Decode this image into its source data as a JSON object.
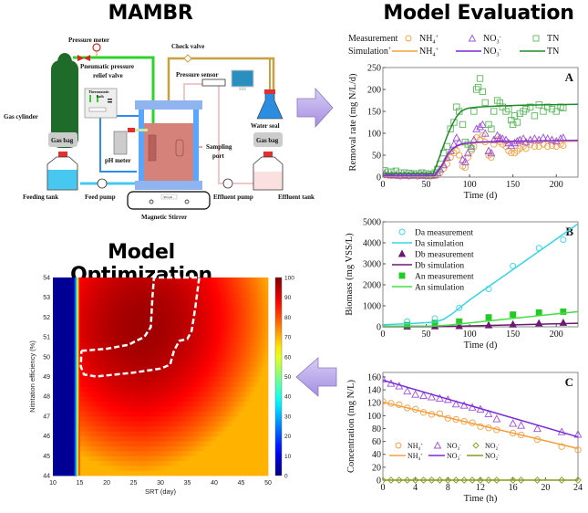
{
  "panels": {
    "mambr_title": "MAMBR",
    "evaluation_title": "Model Evaluation",
    "optimization_title": "Model Optimization"
  },
  "diagram": {
    "labels": {
      "pressure_meter": "Pressure meter",
      "relief_valve_1": "Pneumatic pressure",
      "relief_valve_2": "relief valve",
      "check_valve": "Check valve",
      "pressure_sensor": "Pressure sensor",
      "thermostatic_bath_1": "Thermostatic",
      "thermostatic_bath_2": "bath",
      "gas_cylinder": "Gas cylinder",
      "water_seal": "Water seal",
      "gas_bag_left": "Gas bag",
      "gas_bag_right": "Gas bag",
      "ph_meter": "pH meter",
      "sampling_port_1": "Sampling",
      "sampling_port_2": "port",
      "feeding_tank": "Feeding tank",
      "feed_pump": "Feed pump",
      "effluent_pump": "Effluent pump",
      "effluent_tank": "Effluent tank",
      "magnetic_stirrer": "Magnetic Stirrer",
      "stirrer_display": "300 rpm"
    }
  },
  "legend_top": {
    "measurement_label": "Measurement",
    "simulation_label": "Simulation",
    "simulation_sup": "+",
    "items": [
      {
        "base": "NH",
        "sub": "4",
        "sup": "+"
      },
      {
        "base": "NO",
        "sub": "3",
        "sup": "-"
      },
      {
        "base": "TN",
        "sub": "",
        "sup": ""
      }
    ]
  },
  "colors": {
    "nh4": "#f5a040",
    "no3": "#9b4fe0",
    "no3_line": "#7a28d8",
    "tn": "#5cb85c",
    "tn_line": "#1f8a2a",
    "da": "#33d6e6",
    "db": "#6b1a72",
    "an_meas": "#22cc22",
    "an_line": "#44dd44",
    "no2": "#8a9a20",
    "arrow": "#b9a6ec"
  },
  "chart_data": [
    {
      "id": "A",
      "type": "scatter",
      "panel_label": "A",
      "xlabel": "Time (d)",
      "ylabel": "Removal rate (mg N/L/d)",
      "xlim": [
        0,
        225
      ],
      "ylim": [
        0,
        250
      ],
      "xticks": [
        0,
        50,
        100,
        150,
        200
      ],
      "yticks": [
        0,
        50,
        100,
        150,
        200,
        250
      ],
      "series": [
        {
          "name": "NH4+ measurement",
          "kind": "circle",
          "color_key": "nh4",
          "x": [
            2,
            6,
            10,
            15,
            20,
            25,
            30,
            35,
            40,
            45,
            50,
            55,
            60,
            63,
            66,
            70,
            74,
            78,
            82,
            85,
            88,
            92,
            95,
            98,
            102,
            105,
            108,
            112,
            115,
            118,
            122,
            125,
            128,
            132,
            135,
            138,
            142,
            145,
            148,
            152,
            155,
            158,
            162,
            165,
            170,
            175,
            180,
            185,
            190,
            195,
            200,
            205,
            208
          ],
          "y": [
            5,
            4,
            3,
            3,
            2,
            3,
            2,
            3,
            2,
            3,
            2,
            2,
            3,
            6,
            10,
            20,
            30,
            45,
            55,
            60,
            50,
            25,
            22,
            45,
            60,
            70,
            90,
            85,
            95,
            80,
            50,
            45,
            75,
            85,
            80,
            75,
            70,
            60,
            55,
            55,
            60,
            65,
            70,
            65,
            75,
            70,
            70,
            75,
            70,
            72,
            70,
            75,
            72
          ]
        },
        {
          "name": "NO3- measurement",
          "kind": "triangle",
          "color_key": "no3",
          "x": [
            2,
            6,
            10,
            15,
            20,
            25,
            30,
            35,
            40,
            45,
            50,
            55,
            60,
            63,
            66,
            70,
            74,
            78,
            82,
            85,
            88,
            92,
            95,
            98,
            102,
            105,
            108,
            112,
            115,
            118,
            122,
            125,
            128,
            132,
            135,
            138,
            142,
            145,
            148,
            152,
            155,
            158,
            162,
            165,
            170,
            175,
            180,
            185,
            190,
            195,
            200,
            205,
            208
          ],
          "y": [
            8,
            6,
            5,
            5,
            4,
            5,
            4,
            5,
            4,
            5,
            4,
            4,
            5,
            10,
            18,
            28,
            45,
            60,
            75,
            90,
            80,
            40,
            35,
            55,
            70,
            85,
            110,
            115,
            120,
            100,
            60,
            55,
            85,
            95,
            90,
            88,
            85,
            78,
            72,
            78,
            82,
            85,
            88,
            80,
            85,
            88,
            85,
            90,
            88,
            85,
            82,
            88,
            90
          ]
        },
        {
          "name": "TN measurement",
          "kind": "square",
          "color_key": "tn",
          "x": [
            2,
            6,
            10,
            15,
            20,
            25,
            30,
            35,
            40,
            45,
            50,
            55,
            60,
            63,
            66,
            70,
            74,
            78,
            82,
            85,
            88,
            92,
            95,
            98,
            102,
            105,
            108,
            110,
            112,
            115,
            118,
            122,
            125,
            128,
            132,
            135,
            138,
            142,
            145,
            148,
            150,
            152,
            155,
            158,
            162,
            165,
            170,
            175,
            180,
            185,
            190,
            195,
            200,
            205,
            208
          ],
          "y": [
            15,
            12,
            12,
            14,
            10,
            10,
            9,
            8,
            8,
            10,
            8,
            7,
            10,
            18,
            30,
            55,
            70,
            110,
            125,
            160,
            150,
            120,
            80,
            75,
            65,
            150,
            200,
            205,
            225,
            195,
            170,
            120,
            110,
            150,
            175,
            170,
            160,
            150,
            155,
            130,
            120,
            140,
            125,
            145,
            150,
            155,
            160,
            140,
            165,
            150,
            160,
            155,
            150,
            160,
            158
          ]
        },
        {
          "name": "NH4+ simulation",
          "kind": "line",
          "color_key": "nh4",
          "x": [
            0,
            60,
            65,
            70,
            75,
            80,
            85,
            90,
            95,
            100,
            110,
            130,
            160,
            225
          ],
          "y": [
            3,
            3,
            15,
            30,
            48,
            62,
            70,
            74,
            76,
            78,
            79,
            80,
            81,
            82
          ]
        },
        {
          "name": "NO3- simulation",
          "kind": "line",
          "color_key": "no3_line",
          "x": [
            0,
            60,
            65,
            70,
            75,
            80,
            85,
            90,
            95,
            100,
            110,
            130,
            160,
            225
          ],
          "y": [
            4,
            4,
            17,
            33,
            52,
            64,
            71,
            75,
            77,
            78,
            80,
            81,
            82,
            84
          ]
        },
        {
          "name": "TN simulation",
          "kind": "line",
          "color_key": "tn_line",
          "x": [
            0,
            58,
            62,
            66,
            70,
            75,
            80,
            85,
            90,
            95,
            100,
            110,
            130,
            160,
            225
          ],
          "y": [
            8,
            8,
            28,
            50,
            72,
            98,
            120,
            138,
            150,
            155,
            158,
            160,
            162,
            164,
            166
          ]
        }
      ]
    },
    {
      "id": "B",
      "type": "scatter",
      "panel_label": "B",
      "xlabel": "Time (d)",
      "ylabel": "Biomass  (mg VSS/L)",
      "xlim": [
        0,
        225
      ],
      "ylim": [
        0,
        5000
      ],
      "xticks": [
        0,
        50,
        100,
        150,
        200
      ],
      "yticks": [
        0,
        1000,
        2000,
        3000,
        4000,
        5000
      ],
      "legend": [
        {
          "label": "Da measurement",
          "kind": "circle",
          "color_key": "da"
        },
        {
          "label": "Da simulation",
          "kind": "line",
          "color_key": "da"
        },
        {
          "label": "Db measurement",
          "kind": "triangle",
          "color_key": "db"
        },
        {
          "label": "Db simulation",
          "kind": "line",
          "color_key": "db"
        },
        {
          "label": "An measurement",
          "kind": "square",
          "color_key": "an_meas"
        },
        {
          "label": "An simulation",
          "kind": "line",
          "color_key": "an_line"
        }
      ],
      "series": [
        {
          "name": "Da measurement",
          "kind": "circle",
          "color_key": "da",
          "x": [
            28,
            60,
            88,
            122,
            150,
            180,
            208
          ],
          "y": [
            250,
            400,
            900,
            1800,
            2900,
            3750,
            4150
          ]
        },
        {
          "name": "Da simulation",
          "kind": "line",
          "color_key": "da",
          "x": [
            0,
            30,
            60,
            70,
            80,
            90,
            100,
            225
          ],
          "y": [
            100,
            150,
            220,
            350,
            620,
            950,
            1280,
            4900
          ]
        },
        {
          "name": "Db measurement",
          "kind": "triangle",
          "color_key": "db",
          "x": [
            28,
            60,
            88,
            122,
            150,
            180,
            208
          ],
          "y": [
            20,
            30,
            40,
            80,
            120,
            170,
            200
          ]
        },
        {
          "name": "Db simulation",
          "kind": "line",
          "color_key": "db",
          "x": [
            0,
            60,
            90,
            225
          ],
          "y": [
            10,
            15,
            30,
            170
          ]
        },
        {
          "name": "An measurement",
          "kind": "square",
          "color_key": "an_meas",
          "x": [
            28,
            60,
            88,
            122,
            150,
            180,
            208
          ],
          "y": [
            80,
            180,
            250,
            450,
            580,
            680,
            720
          ]
        },
        {
          "name": "An simulation",
          "kind": "line",
          "color_key": "an_line",
          "x": [
            0,
            60,
            75,
            225
          ],
          "y": [
            30,
            40,
            80,
            720
          ]
        }
      ]
    },
    {
      "id": "C",
      "type": "scatter",
      "panel_label": "C",
      "xlabel": "Time (h)",
      "ylabel": "Concentration (mg N/L)",
      "xlim": [
        0,
        24
      ],
      "ylim": [
        0,
        167
      ],
      "xticks": [
        0,
        4,
        8,
        12,
        16,
        20,
        24
      ],
      "yticks": [
        0,
        20,
        40,
        60,
        80,
        100,
        120,
        140,
        160
      ],
      "legend": [
        {
          "base": "NH",
          "sub": "4",
          "sup": "+",
          "kind": "circle",
          "color_key": "nh4"
        },
        {
          "base": "NO",
          "sub": "3",
          "sup": "-",
          "kind": "triangle",
          "color_key": "no3"
        },
        {
          "base": "NO",
          "sub": "2",
          "sup": "-",
          "kind": "diamond",
          "color_key": "no2"
        },
        {
          "base": "NH",
          "sub": "4",
          "sup": "+",
          "kind": "line",
          "color_key": "nh4"
        },
        {
          "base": "NO",
          "sub": "3",
          "sup": "-",
          "kind": "line",
          "color_key": "no3_line"
        },
        {
          "base": "NO",
          "sub": "2",
          "sup": "-",
          "kind": "line",
          "color_key": "no2"
        }
      ],
      "series": [
        {
          "name": "NH4+ measurement",
          "kind": "circle",
          "color_key": "nh4",
          "x": [
            0,
            1,
            2,
            3,
            4,
            5,
            6,
            7,
            8,
            9,
            10,
            11,
            12,
            13,
            14,
            16,
            17,
            19,
            22,
            24
          ],
          "y": [
            122,
            119,
            117,
            112,
            110,
            105,
            102,
            103,
            96,
            94,
            91,
            89,
            83,
            81,
            78,
            73,
            70,
            63,
            52,
            47
          ]
        },
        {
          "name": "NO3- measurement",
          "kind": "triangle",
          "color_key": "no3",
          "x": [
            0,
            1,
            2,
            3,
            4,
            5,
            6,
            7,
            8,
            9,
            10,
            11,
            12,
            13,
            14,
            16,
            17,
            19,
            22,
            24
          ],
          "y": [
            157,
            150,
            146,
            138,
            133,
            131,
            129,
            127,
            125,
            118,
            116,
            113,
            110,
            103,
            95,
            88,
            85,
            80,
            75,
            71
          ]
        },
        {
          "name": "NO2- measurement",
          "kind": "diamond",
          "color_key": "no2",
          "x": [
            0,
            1,
            2,
            3,
            4,
            5,
            6,
            7,
            8,
            9,
            10,
            11,
            12,
            13,
            14,
            16,
            17,
            19,
            22,
            24
          ],
          "y": [
            0,
            0,
            0,
            0,
            0,
            0,
            0,
            0,
            0,
            0,
            0,
            0,
            0,
            0,
            0,
            0,
            0,
            0,
            0,
            0
          ]
        },
        {
          "name": "NH4+ simulation",
          "kind": "line",
          "color_key": "nh4",
          "x": [
            0,
            24
          ],
          "y": [
            121,
            49
          ]
        },
        {
          "name": "NO3- simulation",
          "kind": "line",
          "color_key": "no3_line",
          "x": [
            0,
            24
          ],
          "y": [
            155,
            67
          ]
        },
        {
          "name": "NO2- simulation",
          "kind": "line",
          "color_key": "no2",
          "x": [
            0,
            24
          ],
          "y": [
            0,
            0
          ]
        }
      ]
    },
    {
      "id": "optimization",
      "type": "heatmap",
      "xlabel": "SRT (day)",
      "ylabel": "Nitritation efficiency (%)",
      "xlim": [
        10,
        50
      ],
      "ylim": [
        44,
        54
      ],
      "xticks": [
        10,
        15,
        20,
        25,
        30,
        35,
        40,
        45,
        50
      ],
      "yticks": [
        44,
        45,
        46,
        47,
        48,
        49,
        50,
        51,
        52,
        53,
        54
      ],
      "colorbar": {
        "min": 0,
        "max": 100,
        "ticks": [
          0,
          10,
          20,
          30,
          40,
          50,
          60,
          70,
          80,
          90,
          100
        ]
      },
      "threshold_srt": 14.5,
      "optimum_region_outline": [
        [
          15.3,
          50.3
        ],
        [
          20,
          50.4
        ],
        [
          24,
          50.6
        ],
        [
          27,
          51.0
        ],
        [
          28.2,
          51.5
        ],
        [
          28.5,
          53
        ],
        [
          28.8,
          54
        ],
        [
          37.2,
          54
        ],
        [
          36.5,
          52.5
        ],
        [
          35.8,
          51.3
        ],
        [
          35,
          50.9
        ],
        [
          33.5,
          50.8
        ],
        [
          32.5,
          50.3
        ],
        [
          31.8,
          49.6
        ],
        [
          30,
          49.4
        ],
        [
          25,
          49.2
        ],
        [
          18,
          49.0
        ],
        [
          15.8,
          49.1
        ],
        [
          15.2,
          49.5
        ],
        [
          15.3,
          50.3
        ]
      ]
    }
  ]
}
